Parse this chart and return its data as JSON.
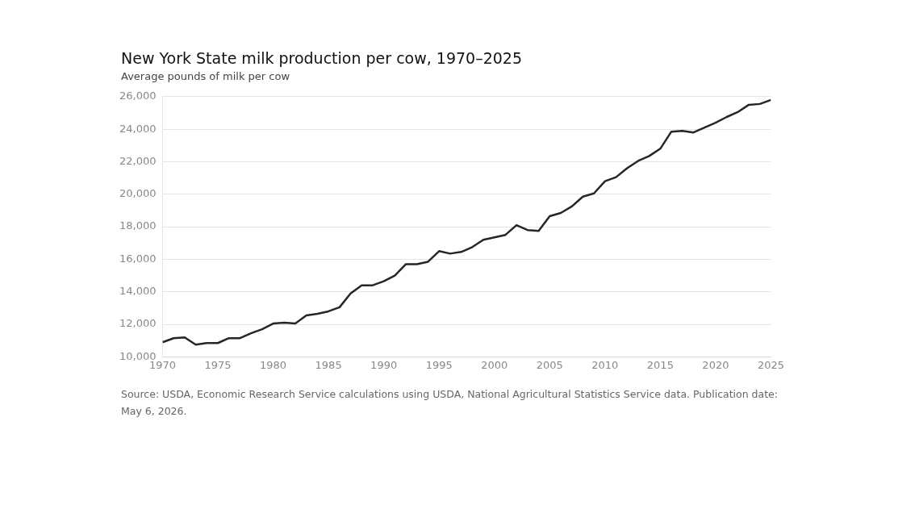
{
  "chart_data": {
    "type": "line",
    "title": "New York State milk production per cow, 1970–2025",
    "subtitle": "Average pounds of milk per cow",
    "x": [
      1970,
      1971,
      1972,
      1973,
      1974,
      1975,
      1976,
      1977,
      1978,
      1979,
      1980,
      1981,
      1982,
      1983,
      1984,
      1985,
      1986,
      1987,
      1988,
      1989,
      1990,
      1991,
      1992,
      1993,
      1994,
      1995,
      1996,
      1997,
      1998,
      1999,
      2000,
      2001,
      2002,
      2003,
      2004,
      2005,
      2006,
      2007,
      2008,
      2009,
      2010,
      2011,
      2012,
      2013,
      2014,
      2015,
      2016,
      2017,
      2018,
      2019,
      2020,
      2021,
      2022,
      2023,
      2024,
      2025
    ],
    "series": [
      {
        "color": "#262626",
        "values": [
          10900,
          11150,
          11200,
          10750,
          10850,
          10850,
          11150,
          11150,
          11450,
          11700,
          12050,
          12100,
          12050,
          12550,
          12650,
          12800,
          13050,
          13900,
          14400,
          14400,
          14650,
          15000,
          15700,
          15700,
          15850,
          16500,
          16350,
          16450,
          16750,
          17200,
          17350,
          17500,
          18100,
          17800,
          17750,
          18650,
          18850,
          19250,
          19850,
          20050,
          20800,
          21050,
          21600,
          22050,
          22350,
          22800,
          23850,
          23900,
          23800,
          24100,
          24400,
          24750,
          25050,
          25500,
          25550,
          25800
        ]
      }
    ],
    "xlim": [
      1970,
      2025
    ],
    "xticks": [
      1970,
      1975,
      1980,
      1985,
      1990,
      1995,
      2000,
      2005,
      2010,
      2015,
      2020,
      2025
    ],
    "ylim": [
      10000,
      26000
    ],
    "yticks": [
      {
        "value": 10000,
        "label": "10,000"
      },
      {
        "value": 12000,
        "label": "12,000"
      },
      {
        "value": 14000,
        "label": "14,000"
      },
      {
        "value": 16000,
        "label": "16,000"
      },
      {
        "value": 18000,
        "label": "18,000"
      },
      {
        "value": 20000,
        "label": "20,000"
      },
      {
        "value": 22000,
        "label": "22,000"
      },
      {
        "value": 24000,
        "label": "24,000"
      },
      {
        "value": 26000,
        "label": "26,000"
      }
    ],
    "grid": "y",
    "legend": false,
    "marker": "none",
    "line_style": "solid",
    "annotations": [
      "Source: USDA, Economic Research Service calculations using USDA, National Agricultural Statistics Service data. Publication date: May 6, 2026."
    ]
  }
}
